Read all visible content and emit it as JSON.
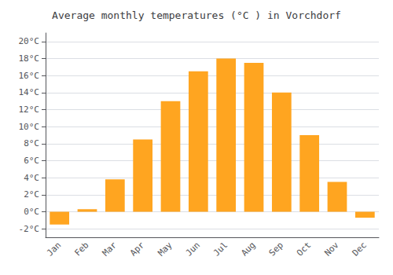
{
  "chart_data": {
    "type": "bar",
    "title": "Average monthly temperatures (°C ) in Vorchdorf",
    "categories": [
      "Jan",
      "Feb",
      "Mar",
      "Apr",
      "May",
      "Jun",
      "Jul",
      "Aug",
      "Sep",
      "Oct",
      "Nov",
      "Dec"
    ],
    "values": [
      -1.5,
      0.3,
      3.8,
      8.5,
      13.0,
      16.5,
      18.0,
      17.5,
      14.0,
      9.0,
      3.5,
      -0.7
    ],
    "color": "#FFA520",
    "ylim": [
      -3,
      21
    ],
    "yticks": [
      {
        "value": -2,
        "label": "-2°C"
      },
      {
        "value": 0,
        "label": "0°C"
      },
      {
        "value": 2,
        "label": "2°C"
      },
      {
        "value": 4,
        "label": "4°C"
      },
      {
        "value": 6,
        "label": "6°C"
      },
      {
        "value": 8,
        "label": "8°C"
      },
      {
        "value": 10,
        "label": "10°C"
      },
      {
        "value": 12,
        "label": "12°C"
      },
      {
        "value": 14,
        "label": "14°C"
      },
      {
        "value": 16,
        "label": "16°C"
      },
      {
        "value": 18,
        "label": "18°C"
      },
      {
        "value": 20,
        "label": "20°C"
      }
    ],
    "grid": true
  }
}
